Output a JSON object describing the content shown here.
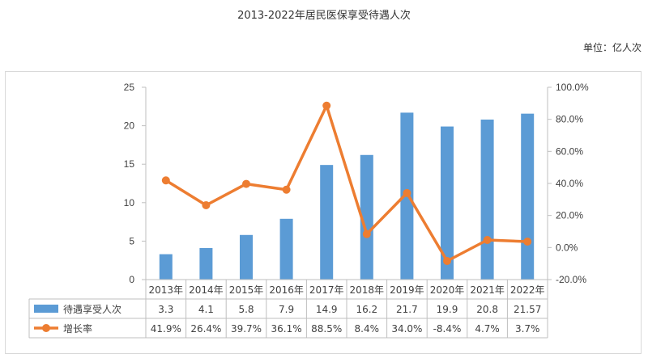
{
  "chart_data": {
    "type": "bar",
    "title": "2013-2022年居民医保享受待遇人次",
    "unit_label": "单位：亿人次",
    "categories": [
      "2013年",
      "2014年",
      "2015年",
      "2016年",
      "2017年",
      "2018年",
      "2019年",
      "2020年",
      "2021年",
      "2022年"
    ],
    "series": [
      {
        "name": "待遇享受人次",
        "type": "bar",
        "axis": "left",
        "color": "#5b9bd5",
        "values": [
          3.3,
          4.1,
          5.8,
          7.9,
          14.9,
          16.2,
          21.7,
          19.9,
          20.8,
          21.57
        ],
        "labels": [
          "3.3",
          "4.1",
          "5.8",
          "7.9",
          "14.9",
          "16.2",
          "21.7",
          "19.9",
          "20.8",
          "21.57"
        ]
      },
      {
        "name": "增长率",
        "type": "line",
        "axis": "right",
        "color": "#ed7d31",
        "values": [
          41.9,
          26.4,
          39.7,
          36.1,
          88.5,
          8.4,
          34.0,
          -8.4,
          4.7,
          3.7
        ],
        "labels": [
          "41.9%",
          "26.4%",
          "39.7%",
          "36.1%",
          "88.5%",
          "8.4%",
          "34.0%",
          "-8.4%",
          "4.7%",
          "3.7%"
        ]
      }
    ],
    "ylim_left": [
      0,
      25
    ],
    "yticks_left": [
      "0",
      "5",
      "10",
      "15",
      "20",
      "25"
    ],
    "ylim_right": [
      -20,
      100
    ],
    "yticks_right": [
      "-20.0%",
      "0.0%",
      "20.0%",
      "40.0%",
      "60.0%",
      "80.0%",
      "100.0%"
    ],
    "grid": false,
    "legend": "data-table"
  }
}
